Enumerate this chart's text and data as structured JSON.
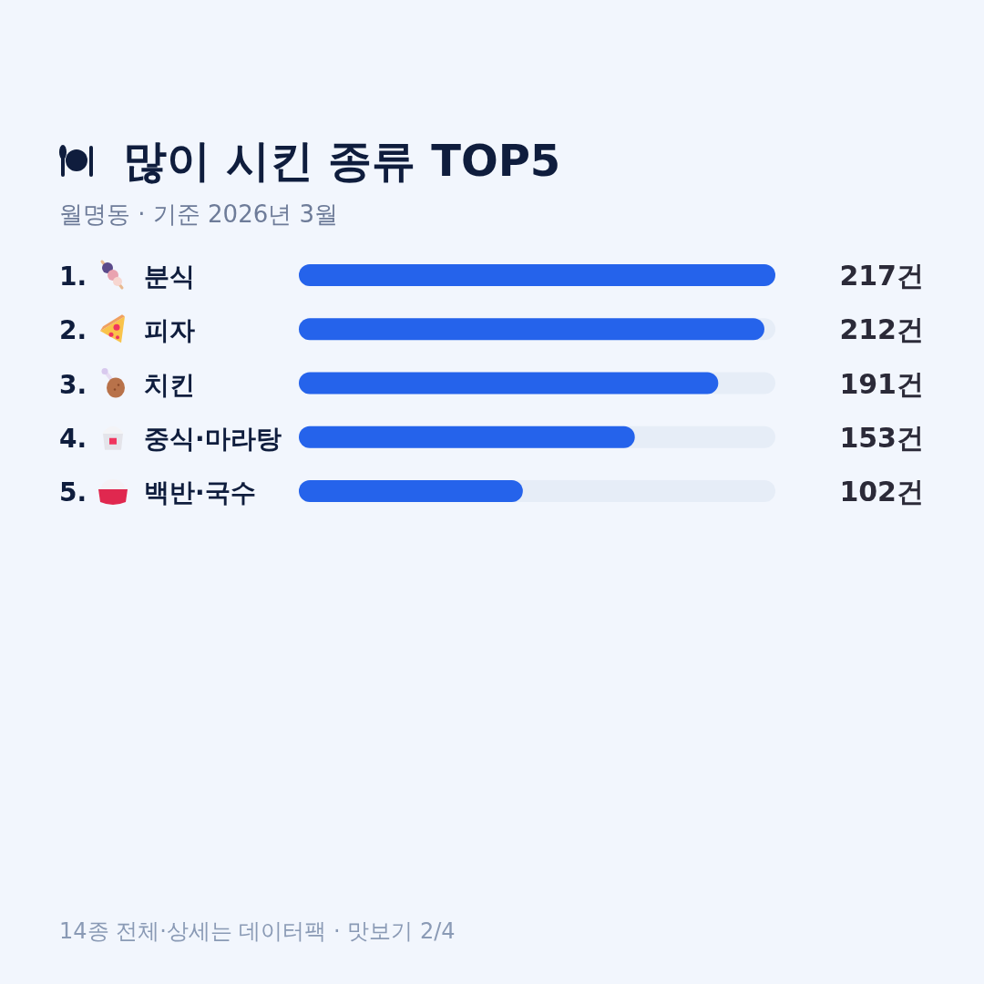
{
  "chart_data": {
    "type": "bar",
    "orientation": "horizontal",
    "title": "많이 시킨 종류 TOP5",
    "subtitle": "월명동 · 기준 2026년 3월",
    "categories": [
      "1. 분식",
      "2. 피자",
      "3. 치킨",
      "4. 중식·마라탕",
      "5. 백반·국수"
    ],
    "values": [
      217,
      212,
      191,
      153,
      102
    ],
    "value_labels": [
      "217건",
      "212건",
      "191건",
      "153건",
      "102건"
    ],
    "color": "#2563eb",
    "xlim": [
      0,
      217
    ],
    "annotations": [
      "14종 전체·상세는 데이터팩 · 맛보기 2/4"
    ]
  }
}
